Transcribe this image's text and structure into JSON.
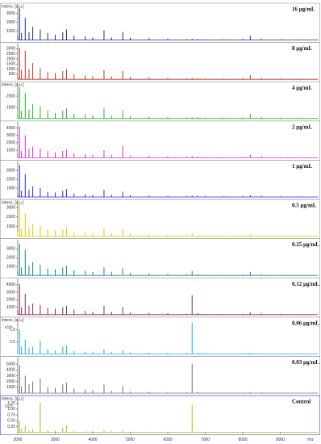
{
  "chart_data": [
    {
      "type": "line",
      "label": "16 µg/mL",
      "ylabel": "Intens. [a.u.]",
      "color": "#1f2a8a",
      "x": [
        2000,
        2050,
        2100,
        2200,
        2300,
        2400,
        2600,
        2800,
        3000,
        3200,
        3300,
        3500,
        3800,
        4000,
        4300,
        4500,
        4800,
        5000,
        5500,
        6000,
        6500,
        6650,
        6800,
        7000,
        7500,
        8000,
        8200,
        8500,
        9000,
        9500,
        10000
      ],
      "values": [
        500,
        3600,
        800,
        2500,
        900,
        1500,
        1200,
        800,
        600,
        900,
        1200,
        500,
        400,
        300,
        1100,
        300,
        900,
        250,
        200,
        150,
        100,
        120,
        100,
        80,
        80,
        100,
        500,
        120,
        80,
        60,
        50
      ],
      "xlim": [
        2000,
        10000
      ],
      "ylim": [
        0,
        3800
      ],
      "yticks": [
        1000,
        2000,
        3000
      ]
    },
    {
      "type": "line",
      "label": "8 µg/mL",
      "color": "#c0302a",
      "x": [
        2000,
        2050,
        2100,
        2200,
        2300,
        2400,
        2600,
        2800,
        3000,
        3200,
        3300,
        3500,
        3800,
        4000,
        4300,
        4500,
        4800,
        5000,
        5500,
        6000,
        6500,
        6650,
        6800,
        7000,
        7500,
        8000,
        8200,
        8500,
        9000,
        9500,
        10000
      ],
      "values": [
        400,
        3100,
        900,
        2800,
        1000,
        1600,
        1100,
        700,
        600,
        800,
        1000,
        500,
        400,
        300,
        900,
        300,
        800,
        250,
        200,
        150,
        100,
        150,
        100,
        80,
        80,
        100,
        400,
        150,
        80,
        60,
        50
      ],
      "xlim": [
        2000,
        10000
      ],
      "ylim": [
        0,
        3300
      ],
      "yticks": [
        500,
        1000,
        1500,
        2000,
        2500,
        3000
      ]
    },
    {
      "type": "line",
      "label": "4 µg/mL",
      "ylabel": "Intens. [a.u.]",
      "color": "#22b02a",
      "x": [
        2000,
        2050,
        2100,
        2200,
        2300,
        2400,
        2600,
        2800,
        3000,
        3200,
        3300,
        3500,
        3800,
        4000,
        4300,
        4500,
        4800,
        5000,
        5500,
        6000,
        6500,
        6650,
        6800,
        7000,
        7500,
        8000,
        8200,
        8500,
        9000,
        9500,
        10000
      ],
      "values": [
        400,
        2800,
        700,
        2300,
        800,
        1300,
        1100,
        700,
        500,
        700,
        900,
        400,
        350,
        300,
        900,
        250,
        700,
        200,
        180,
        150,
        100,
        120,
        100,
        80,
        80,
        100,
        400,
        120,
        80,
        60,
        50
      ],
      "xlim": [
        2000,
        10000
      ],
      "ylim": [
        0,
        3000
      ],
      "yticks": [
        1000,
        2000
      ]
    },
    {
      "type": "line",
      "label": "2 µg/mL",
      "color": "#d82ad8",
      "x": [
        2000,
        2050,
        2100,
        2200,
        2300,
        2400,
        2600,
        2800,
        3000,
        3200,
        3300,
        3500,
        3800,
        4000,
        4300,
        4500,
        4800,
        5000,
        5500,
        6000,
        6500,
        6650,
        6800,
        7000,
        7500,
        8000,
        8200,
        8500,
        9000,
        9500,
        10000
      ],
      "values": [
        600,
        4200,
        900,
        3000,
        1200,
        1500,
        1300,
        900,
        700,
        900,
        1100,
        600,
        500,
        400,
        1000,
        400,
        1600,
        300,
        250,
        200,
        150,
        250,
        150,
        100,
        100,
        120,
        400,
        200,
        100,
        80,
        60
      ],
      "xlim": [
        2000,
        10000
      ],
      "ylim": [
        0,
        4500
      ],
      "yticks": [
        1000,
        2000,
        3000,
        4000
      ]
    },
    {
      "type": "line",
      "label": "1 µg/mL",
      "color": "#2a2ad0",
      "x": [
        2000,
        2050,
        2100,
        2200,
        2300,
        2400,
        2600,
        2800,
        3000,
        3200,
        3300,
        3500,
        3800,
        4000,
        4300,
        4500,
        4800,
        5000,
        5500,
        6000,
        6500,
        6650,
        6800,
        7000,
        7500,
        8000,
        8200,
        8500,
        9000,
        9500,
        10000
      ],
      "values": [
        300,
        3600,
        700,
        2600,
        800,
        1200,
        1000,
        600,
        500,
        700,
        900,
        400,
        300,
        250,
        800,
        250,
        600,
        200,
        150,
        120,
        100,
        150,
        100,
        80,
        80,
        90,
        200,
        100,
        70,
        60,
        50
      ],
      "xlim": [
        2000,
        10000
      ],
      "ylim": [
        0,
        3800
      ],
      "yticks": [
        1000,
        2000,
        3000
      ]
    },
    {
      "type": "line",
      "label": "0.5 µg/mL",
      "ylabel": "Intens. [a.u.]",
      "color": "#e0c800",
      "x": [
        2000,
        2050,
        2100,
        2200,
        2300,
        2400,
        2600,
        2800,
        3000,
        3200,
        3300,
        3500,
        3800,
        4000,
        4300,
        4500,
        4800,
        5000,
        5500,
        6000,
        6500,
        6650,
        6800,
        7000,
        7500,
        8000,
        8200,
        8500,
        9000,
        9500,
        10000
      ],
      "values": [
        500,
        3300,
        800,
        2400,
        900,
        1300,
        1100,
        700,
        600,
        700,
        900,
        400,
        350,
        300,
        800,
        300,
        700,
        250,
        200,
        150,
        120,
        300,
        100,
        80,
        80,
        90,
        200,
        100,
        70,
        60,
        50
      ],
      "xlim": [
        2000,
        10000
      ],
      "ylim": [
        0,
        3500
      ],
      "yticks": [
        1000,
        2000,
        3000
      ]
    },
    {
      "type": "line",
      "label": "0.25 µg/mL",
      "color": "#1d7f8c",
      "x": [
        2000,
        2050,
        2100,
        2200,
        2300,
        2400,
        2600,
        2800,
        3000,
        3200,
        3300,
        3500,
        3800,
        4000,
        4300,
        4500,
        4800,
        5000,
        5500,
        6000,
        6500,
        6650,
        6800,
        7000,
        7500,
        8000,
        8200,
        8500,
        9000,
        9500,
        10000
      ],
      "values": [
        500,
        3600,
        900,
        2900,
        1100,
        1500,
        1200,
        800,
        700,
        900,
        1100,
        600,
        500,
        400,
        900,
        400,
        800,
        300,
        250,
        200,
        150,
        500,
        150,
        100,
        100,
        120,
        400,
        150,
        80,
        60,
        50
      ],
      "xlim": [
        2000,
        10000
      ],
      "ylim": [
        0,
        3800
      ],
      "yticks": [
        1000,
        2000,
        3000
      ]
    },
    {
      "type": "line",
      "label": "0.12 µg/mL",
      "color": "#8a2a5a",
      "x": [
        2000,
        2050,
        2100,
        2200,
        2300,
        2400,
        2600,
        2800,
        3000,
        3200,
        3300,
        3500,
        3800,
        4000,
        4300,
        4500,
        4800,
        5000,
        5500,
        6000,
        6500,
        6650,
        6800,
        7000,
        7500,
        8000,
        8200,
        8500,
        9000,
        9500,
        10000
      ],
      "values": [
        600,
        4100,
        1000,
        2800,
        1200,
        1500,
        1300,
        900,
        800,
        1000,
        1200,
        700,
        500,
        400,
        1200,
        400,
        1000,
        300,
        250,
        200,
        150,
        2600,
        200,
        100,
        100,
        120,
        300,
        150,
        80,
        60,
        50
      ],
      "xlim": [
        2000,
        10000
      ],
      "ylim": [
        0,
        4500
      ],
      "yticks": [
        1000,
        2000,
        3000,
        4000
      ]
    },
    {
      "type": "line",
      "label": "0.06 µg/mL",
      "ylabel": "Intens. [a.u.]",
      "yscale_label": "x10⁴",
      "color": "#1ab0d8",
      "x": [
        2000,
        2050,
        2100,
        2200,
        2300,
        2400,
        2600,
        2800,
        3000,
        3200,
        3300,
        3500,
        3800,
        4000,
        4300,
        4500,
        4800,
        5000,
        5500,
        6000,
        6500,
        6650,
        6800,
        7000,
        7500,
        8000,
        8200,
        8500,
        9000,
        9500,
        10000
      ],
      "values": [
        0.1,
        1.0,
        0.3,
        0.6,
        0.25,
        0.3,
        0.55,
        0.2,
        0.15,
        0.3,
        0.35,
        0.12,
        0.1,
        0.1,
        0.2,
        0.08,
        0.15,
        0.06,
        0.05,
        0.05,
        0.05,
        1.3,
        0.05,
        0.04,
        0.03,
        0.03,
        0.04,
        0.03,
        0.02,
        0.02,
        0.02
      ],
      "xlim": [
        2000,
        10000
      ],
      "ylim": [
        0,
        1.4
      ],
      "yticks": [
        0.5,
        {
          "value": 1,
          "label": "1.0"
        }
      ]
    },
    {
      "type": "line",
      "label": "0.03 µg/mL",
      "color": "#707070",
      "x": [
        2000,
        2050,
        2100,
        2200,
        2300,
        2400,
        2600,
        2800,
        3000,
        3200,
        3300,
        3500,
        3800,
        4000,
        4300,
        4500,
        4800,
        5000,
        5500,
        6000,
        6500,
        6650,
        6800,
        7000,
        7500,
        8000,
        8200,
        8500,
        9000,
        9500,
        10000
      ],
      "values": [
        800,
        4800,
        1200,
        3000,
        1500,
        2000,
        2500,
        1000,
        900,
        1500,
        1800,
        800,
        600,
        500,
        1500,
        400,
        1200,
        300,
        250,
        200,
        150,
        5000,
        200,
        100,
        100,
        120,
        200,
        150,
        80,
        60,
        50
      ],
      "xlim": [
        2000,
        10000
      ],
      "ylim": [
        0,
        5800
      ],
      "yticks": [
        1000,
        2000,
        3000,
        4000,
        5000
      ]
    },
    {
      "type": "line",
      "label": "Control",
      "ylabel": "Intens. [a.u.]",
      "yscale_label": "x10⁴",
      "color": "#9ac81a",
      "x": [
        2000,
        2050,
        2100,
        2200,
        2300,
        2400,
        2600,
        2800,
        3000,
        3200,
        3300,
        3500,
        3800,
        4000,
        4300,
        4500,
        4800,
        5000,
        5500,
        6000,
        6500,
        6650,
        6800,
        7000,
        7500,
        8000,
        8200,
        8500,
        9000,
        9500,
        10000
      ],
      "values": [
        0.05,
        0.5,
        0.15,
        0.3,
        0.1,
        0.15,
        1.3,
        0.1,
        0.08,
        0.2,
        0.3,
        0.06,
        0.05,
        0.05,
        0.1,
        0.05,
        0.08,
        0.04,
        0.03,
        0.03,
        0.03,
        1.2,
        0.04,
        0.03,
        0.02,
        0.02,
        0.02,
        0.02,
        0.02,
        0.02,
        0.01
      ],
      "xlim": [
        2000,
        10000
      ],
      "ylim": [
        0,
        1.45
      ],
      "yticks": [
        0.25,
        {
          "value": 0.5,
          "label": "0.50"
        },
        0.75,
        {
          "value": 1,
          "label": "1.00"
        },
        1.25
      ],
      "xticks": [
        2000,
        3000,
        4000,
        5000,
        6000,
        7000,
        8000,
        9000
      ],
      "xlabel": "m/z"
    }
  ]
}
